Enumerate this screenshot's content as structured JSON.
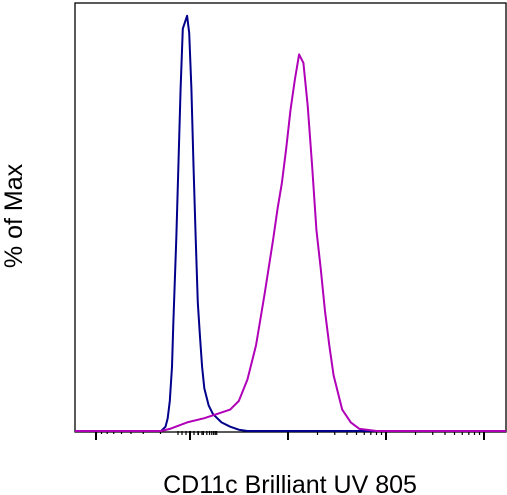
{
  "chart_data": {
    "type": "line",
    "title": "",
    "xlabel": "CD11c Brilliant UV 805",
    "ylabel": "% of Max",
    "xlim": [
      0,
      1
    ],
    "ylim": [
      0,
      100
    ],
    "x_scale": "log (biexponential)",
    "grid": false,
    "legend": "none",
    "series": [
      {
        "color": "#00008b",
        "x": [
          0.0,
          0.2,
          0.21,
          0.215,
          0.22,
          0.225,
          0.228,
          0.235,
          0.24,
          0.245,
          0.25,
          0.26,
          0.265,
          0.27,
          0.275,
          0.28,
          0.285,
          0.29,
          0.295,
          0.3,
          0.31,
          0.32,
          0.33,
          0.34,
          0.36,
          0.38,
          0.4,
          1.0
        ],
        "y": [
          0,
          0,
          1,
          3,
          7,
          15,
          25,
          45,
          62,
          80,
          94,
          97,
          93,
          80,
          62,
          45,
          30,
          22,
          15,
          10,
          6,
          4,
          3,
          2,
          1,
          0.3,
          0,
          0
        ]
      },
      {
        "color": "#b000b8",
        "x": [
          0.0,
          0.2,
          0.22,
          0.26,
          0.3,
          0.33,
          0.36,
          0.38,
          0.4,
          0.42,
          0.44,
          0.46,
          0.47,
          0.48,
          0.49,
          0.5,
          0.51,
          0.52,
          0.53,
          0.54,
          0.55,
          0.56,
          0.57,
          0.58,
          0.59,
          0.6,
          0.62,
          0.64,
          0.66,
          0.7,
          1.0
        ],
        "y": [
          0,
          0,
          0.5,
          2,
          3,
          4,
          5,
          7,
          12,
          20,
          32,
          45,
          52,
          58,
          66,
          75,
          82,
          88,
          86,
          76,
          62,
          47,
          38,
          28,
          20,
          13,
          5,
          2,
          0.5,
          0,
          0
        ]
      }
    ]
  }
}
